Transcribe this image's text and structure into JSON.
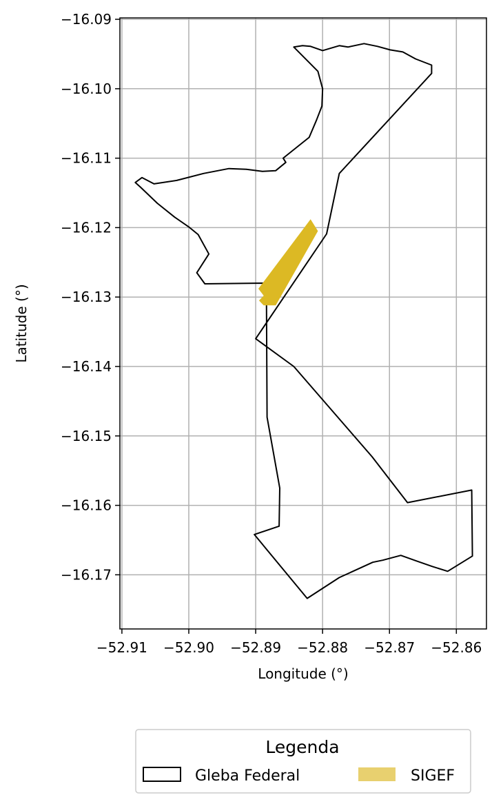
{
  "chart_data": {
    "type": "map",
    "xlabel": "Longitude (°)",
    "ylabel": "Latitude (°)",
    "xlim": [
      -52.9103,
      -52.8555
    ],
    "ylim": [
      -16.1778,
      -16.0898
    ],
    "xticks": [
      -52.91,
      -52.9,
      -52.89,
      -52.88,
      -52.87,
      -52.86
    ],
    "xtick_labels": [
      "−52.91",
      "−52.90",
      "−52.89",
      "−52.88",
      "−52.87",
      "−52.86"
    ],
    "yticks": [
      -16.09,
      -16.1,
      -16.11,
      -16.12,
      -16.13,
      -16.14,
      -16.15,
      -16.16,
      -16.17
    ],
    "ytick_labels": [
      "−16.09",
      "−16.10",
      "−16.11",
      "−16.12",
      "−16.13",
      "−16.14",
      "−16.15",
      "−16.16",
      "−16.17"
    ],
    "grid": true,
    "legend": {
      "title": "Legenda",
      "placement": "bottom-center",
      "entries": [
        {
          "label": "Gleba Federal",
          "style": "outline",
          "color": "#000000"
        },
        {
          "label": "SIGEF",
          "style": "fill",
          "color": "#e8d06f"
        }
      ]
    },
    "series": [
      {
        "name": "Gleba Federal",
        "kind": "polygon-outline",
        "color": "#000000",
        "lon": [
          -52.8843,
          -52.883,
          -52.8818,
          -52.88,
          -52.8775,
          -52.8762,
          -52.8738,
          -52.8718,
          -52.8699,
          -52.868,
          -52.8661,
          -52.8637,
          -52.8637,
          -52.8775,
          -52.8794,
          -52.89,
          -52.8843,
          -52.8726,
          -52.8673,
          -52.8577,
          -52.8576,
          -52.8613,
          -52.8636,
          -52.866,
          -52.8683,
          -52.871,
          -52.8725,
          -52.8775,
          -52.8823,
          -52.8902,
          -52.8865,
          -52.8864,
          -52.8883,
          -52.8884,
          -52.8976,
          -52.8988,
          -52.897,
          -52.8986,
          -52.9,
          -52.9021,
          -52.9047,
          -52.9072,
          -52.908,
          -52.907,
          -52.9052,
          -52.9018,
          -52.8978,
          -52.894,
          -52.8914,
          -52.889,
          -52.887,
          -52.8855,
          -52.8859,
          -52.882,
          -52.8809,
          -52.8801,
          -52.88,
          -52.8807,
          -52.8843
        ],
        "lat": [
          -16.094,
          -16.0938,
          -16.0939,
          -16.0945,
          -16.0938,
          -16.094,
          -16.0935,
          -16.0939,
          -16.0944,
          -16.0947,
          -16.0957,
          -16.0966,
          -16.0978,
          -16.1122,
          -16.1209,
          -16.136,
          -16.14,
          -16.153,
          -16.1596,
          -16.1578,
          -16.1673,
          -16.1695,
          -16.1688,
          -16.168,
          -16.1672,
          -16.1679,
          -16.1682,
          -16.1704,
          -16.1734,
          -16.1642,
          -16.163,
          -16.1575,
          -16.1473,
          -16.128,
          -16.1281,
          -16.1265,
          -16.1238,
          -16.121,
          -16.1199,
          -16.1185,
          -16.1165,
          -16.1142,
          -16.1135,
          -16.1128,
          -16.1137,
          -16.1132,
          -16.1122,
          -16.1115,
          -16.1116,
          -16.1119,
          -16.1118,
          -16.1106,
          -16.11,
          -16.107,
          -16.1045,
          -16.1025,
          -16.1,
          -16.0975,
          -16.094
        ]
      },
      {
        "name": "SIGEF",
        "kind": "polygon-fill",
        "color": "#dcb924",
        "lon": [
          -52.8818,
          -52.8807,
          -52.887,
          -52.8888,
          -52.8895,
          -52.8888,
          -52.8896,
          -52.8818
        ],
        "lat": [
          -16.1188,
          -16.1205,
          -16.1312,
          -16.1312,
          -16.1305,
          -16.1298,
          -16.1288,
          -16.1188
        ]
      }
    ]
  }
}
